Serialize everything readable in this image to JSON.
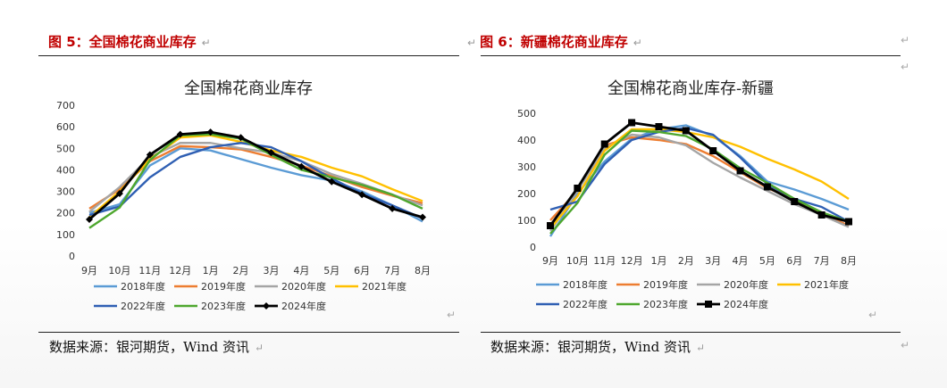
{
  "figures": [
    {
      "caption": "图 5：全国棉花商业库存",
      "source": "数据来源：银河期货，Wind 资讯"
    },
    {
      "caption": "图 6：新疆棉花商业库存",
      "source": "数据来源：银河期货，Wind 资讯"
    }
  ],
  "paragraph_mark": "↵",
  "chart_data": [
    {
      "type": "line",
      "title": "全国棉花商业库存",
      "categories": [
        "9月",
        "10月",
        "11月",
        "12月",
        "1月",
        "2月",
        "3月",
        "4月",
        "5月",
        "6月",
        "7月",
        "8月"
      ],
      "ylim": [
        0,
        700
      ],
      "yticks": [
        0,
        100,
        200,
        300,
        400,
        500,
        600,
        700
      ],
      "grid": false,
      "legend": "bottom",
      "series": [
        {
          "name": "2018年度",
          "color": "#5b9bd5",
          "marker": false,
          "values": [
            200,
            240,
            420,
            500,
            490,
            450,
            410,
            375,
            350,
            300,
            235,
            160
          ]
        },
        {
          "name": "2019年度",
          "color": "#ed7d31",
          "marker": false,
          "values": [
            220,
            310,
            440,
            510,
            505,
            495,
            460,
            420,
            370,
            320,
            280,
            245
          ]
        },
        {
          "name": "2020年度",
          "color": "#a5a5a5",
          "marker": false,
          "values": [
            205,
            320,
            460,
            525,
            525,
            500,
            480,
            440,
            380,
            335,
            285,
            235
          ]
        },
        {
          "name": "2021年度",
          "color": "#ffc000",
          "marker": false,
          "values": [
            180,
            300,
            450,
            550,
            560,
            530,
            490,
            460,
            410,
            370,
            310,
            255
          ]
        },
        {
          "name": "2022年度",
          "color": "#2f5fb3",
          "marker": false,
          "values": [
            190,
            230,
            365,
            460,
            505,
            525,
            505,
            440,
            360,
            290,
            235,
            175
          ]
        },
        {
          "name": "2023年度",
          "color": "#4ea72e",
          "marker": false,
          "values": [
            130,
            225,
            445,
            560,
            565,
            545,
            470,
            400,
            365,
            330,
            285,
            220
          ]
        },
        {
          "name": "2024年度",
          "color": "#000000",
          "marker": "diamond",
          "values": [
            170,
            290,
            470,
            565,
            575,
            550,
            480,
            415,
            345,
            285,
            220,
            180
          ]
        }
      ]
    },
    {
      "type": "line",
      "title": "全国棉花商业库存-新疆",
      "categories": [
        "9月",
        "10月",
        "11月",
        "12月",
        "1月",
        "2月",
        "3月",
        "4月",
        "5月",
        "6月",
        "7月",
        "8月"
      ],
      "ylim": [
        0,
        500
      ],
      "yticks": [
        0,
        100,
        200,
        300,
        400,
        500
      ],
      "grid": false,
      "legend": "bottom",
      "series": [
        {
          "name": "2018年度",
          "color": "#5b9bd5",
          "marker": false,
          "values": [
            40,
            200,
            320,
            405,
            440,
            455,
            415,
            340,
            245,
            215,
            180,
            140
          ]
        },
        {
          "name": "2019年度",
          "color": "#ed7d31",
          "marker": false,
          "values": [
            100,
            210,
            380,
            410,
            400,
            385,
            340,
            280,
            220,
            180,
            125,
            80
          ]
        },
        {
          "name": "2020年度",
          "color": "#a5a5a5",
          "marker": false,
          "values": [
            60,
            210,
            370,
            420,
            410,
            380,
            315,
            260,
            210,
            160,
            120,
            75
          ]
        },
        {
          "name": "2021年度",
          "color": "#ffc000",
          "marker": false,
          "values": [
            70,
            190,
            360,
            440,
            440,
            430,
            410,
            375,
            330,
            290,
            245,
            180
          ]
        },
        {
          "name": "2022年度",
          "color": "#2f5fb3",
          "marker": false,
          "values": [
            140,
            170,
            310,
            400,
            430,
            445,
            420,
            335,
            235,
            180,
            150,
            95
          ]
        },
        {
          "name": "2023年度",
          "color": "#4ea72e",
          "marker": false,
          "values": [
            50,
            165,
            345,
            435,
            430,
            415,
            365,
            295,
            240,
            180,
            130,
            95
          ]
        },
        {
          "name": "2024年度",
          "color": "#000000",
          "marker": "square",
          "values": [
            80,
            220,
            385,
            465,
            450,
            435,
            360,
            285,
            225,
            170,
            120,
            95
          ]
        }
      ]
    }
  ]
}
